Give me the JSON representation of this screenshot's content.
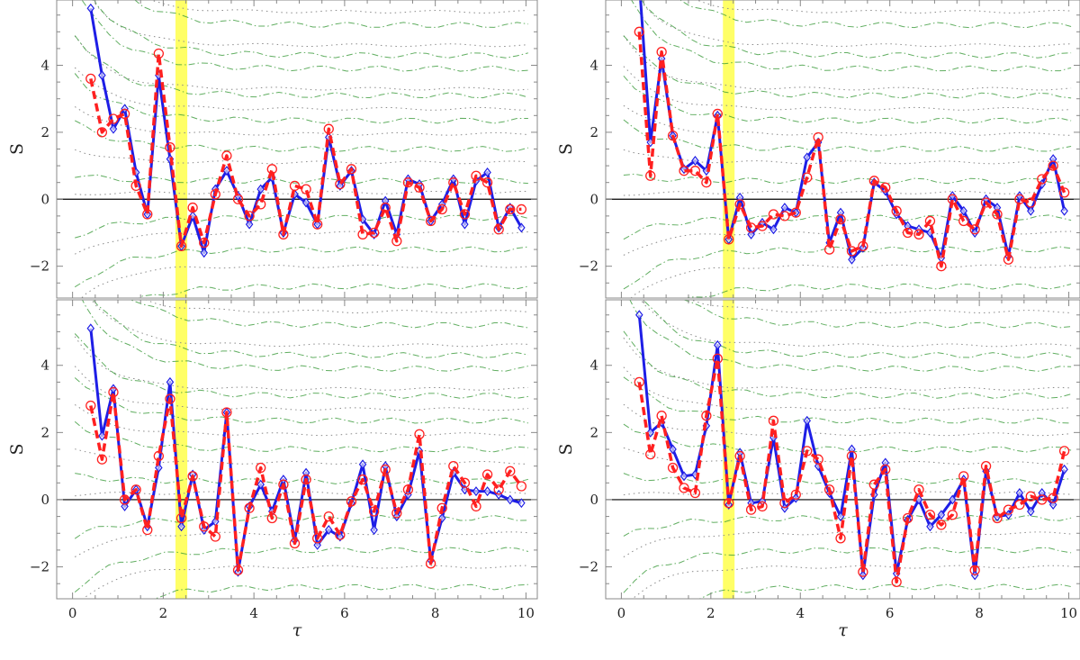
{
  "chart_data": [
    {
      "type": "line",
      "panel": "top-left",
      "xlabel": "",
      "ylabel": "S",
      "xlim": [
        -0.35,
        10.25
      ],
      "ylim": [
        -2.95,
        5.95
      ],
      "yticks": [
        -2,
        0,
        2,
        4
      ],
      "xticks": [
        0,
        2,
        4,
        6,
        8,
        10
      ],
      "highlight_band": [
        2.27,
        2.53
      ],
      "highlight_color": "#ffff66",
      "series": [
        {
          "color": "#1e1ee6",
          "style": "solid",
          "marker": "diamond",
          "x": [
            0.4,
            0.65,
            0.9,
            1.15,
            1.4,
            1.65,
            1.9,
            2.15,
            2.4,
            2.65,
            2.9,
            3.15,
            3.4,
            3.65,
            3.9,
            4.15,
            4.4,
            4.65,
            4.9,
            5.15,
            5.4,
            5.65,
            5.9,
            6.15,
            6.4,
            6.65,
            6.9,
            7.15,
            7.4,
            7.65,
            7.9,
            8.15,
            8.4,
            8.65,
            8.9,
            9.15,
            9.4,
            9.65,
            9.9
          ],
          "y": [
            5.7,
            3.7,
            2.1,
            2.7,
            0.8,
            -0.45,
            3.7,
            1.2,
            -1.4,
            -0.5,
            -1.6,
            0.3,
            0.85,
            0.1,
            -0.75,
            0.3,
            0.65,
            -1.0,
            0.15,
            -0.1,
            -0.75,
            1.85,
            0.4,
            0.85,
            -0.6,
            -1.05,
            -0.05,
            -1.05,
            0.6,
            0.45,
            -0.65,
            -0.15,
            0.6,
            -0.75,
            0.55,
            0.8,
            -0.85,
            -0.25,
            -0.85
          ]
        },
        {
          "color": "#ff2020",
          "style": "dashed",
          "marker": "circle",
          "x": [
            0.4,
            0.65,
            0.9,
            1.15,
            1.4,
            1.65,
            1.9,
            2.15,
            2.4,
            2.65,
            2.9,
            3.15,
            3.4,
            3.65,
            3.9,
            4.15,
            4.4,
            4.65,
            4.9,
            5.15,
            5.4,
            5.65,
            5.9,
            6.15,
            6.4,
            6.65,
            6.9,
            7.15,
            7.4,
            7.65,
            7.9,
            8.15,
            8.4,
            8.65,
            8.9,
            9.15,
            9.4,
            9.65,
            9.9
          ],
          "y": [
            3.6,
            2.0,
            2.4,
            2.55,
            0.4,
            -0.45,
            4.35,
            1.55,
            -1.4,
            -0.25,
            -1.3,
            0.15,
            1.3,
            0.0,
            -0.5,
            -0.15,
            0.9,
            -1.05,
            0.4,
            0.3,
            -0.75,
            2.1,
            0.45,
            0.9,
            -1.05,
            -1.0,
            -0.25,
            -1.25,
            0.5,
            0.35,
            -0.65,
            -0.3,
            0.5,
            -0.45,
            0.7,
            0.5,
            -0.9,
            -0.3,
            -0.3
          ]
        }
      ]
    },
    {
      "type": "line",
      "panel": "top-right",
      "xlabel": "",
      "ylabel": "S",
      "xlim": [
        -0.35,
        10.25
      ],
      "ylim": [
        -2.95,
        5.95
      ],
      "yticks": [
        -2,
        0,
        2,
        4
      ],
      "xticks": [
        0,
        2,
        4,
        6,
        8,
        10
      ],
      "highlight_band": [
        2.27,
        2.53
      ],
      "highlight_color": "#ffff66",
      "series": [
        {
          "color": "#1e1ee6",
          "style": "solid",
          "marker": "diamond",
          "x": [
            0.4,
            0.65,
            0.9,
            1.15,
            1.4,
            1.65,
            1.9,
            2.15,
            2.4,
            2.65,
            2.9,
            3.15,
            3.4,
            3.65,
            3.9,
            4.15,
            4.4,
            4.65,
            4.9,
            5.15,
            5.4,
            5.65,
            5.9,
            6.15,
            6.4,
            6.65,
            6.9,
            7.15,
            7.4,
            7.65,
            7.9,
            8.15,
            8.4,
            8.65,
            8.9,
            9.15,
            9.4,
            9.65,
            9.9
          ],
          "y": [
            6.5,
            1.7,
            4.2,
            1.9,
            0.9,
            1.15,
            0.85,
            2.5,
            -1.2,
            0.05,
            -1.05,
            -0.7,
            -0.9,
            -0.25,
            -0.4,
            1.25,
            1.7,
            -1.3,
            -0.4,
            -1.8,
            -1.45,
            0.5,
            0.25,
            -0.45,
            -0.8,
            -0.9,
            -1.0,
            -1.75,
            0.1,
            -0.35,
            -1.0,
            0.0,
            -0.25,
            -1.7,
            0.1,
            -0.35,
            0.45,
            1.2,
            -0.35
          ]
        },
        {
          "color": "#ff2020",
          "style": "dashed",
          "marker": "circle",
          "x": [
            0.4,
            0.65,
            0.9,
            1.15,
            1.4,
            1.65,
            1.9,
            2.15,
            2.4,
            2.65,
            2.9,
            3.15,
            3.4,
            3.65,
            3.9,
            4.15,
            4.4,
            4.65,
            4.9,
            5.15,
            5.4,
            5.65,
            5.9,
            6.15,
            6.4,
            6.65,
            6.9,
            7.15,
            7.4,
            7.65,
            7.9,
            8.15,
            8.4,
            8.65,
            8.9,
            9.15,
            9.4,
            9.65,
            9.9
          ],
          "y": [
            5.0,
            0.7,
            4.4,
            1.9,
            0.85,
            0.85,
            0.5,
            2.55,
            -1.2,
            -0.15,
            -0.85,
            -0.8,
            -0.45,
            -0.5,
            -0.4,
            0.65,
            1.85,
            -1.5,
            -0.6,
            -1.55,
            -1.4,
            0.55,
            0.35,
            -0.35,
            -1.0,
            -1.05,
            -0.65,
            -2.0,
            0.0,
            -0.65,
            -0.9,
            -0.1,
            -0.45,
            -1.8,
            0.0,
            -0.1,
            0.6,
            1.0,
            0.2
          ]
        }
      ]
    },
    {
      "type": "line",
      "panel": "bottom-left",
      "xlabel": "τ",
      "ylabel": "S",
      "xlim": [
        -0.35,
        10.25
      ],
      "ylim": [
        -2.95,
        5.95
      ],
      "yticks": [
        -2,
        0,
        2,
        4
      ],
      "xticks": [
        0,
        2,
        4,
        6,
        8,
        10
      ],
      "highlight_band": [
        2.27,
        2.53
      ],
      "highlight_color": "#ffff66",
      "series": [
        {
          "color": "#1e1ee6",
          "style": "solid",
          "marker": "diamond",
          "x": [
            0.4,
            0.65,
            0.9,
            1.15,
            1.4,
            1.65,
            1.9,
            2.15,
            2.4,
            2.65,
            2.9,
            3.15,
            3.4,
            3.65,
            3.9,
            4.15,
            4.4,
            4.65,
            4.9,
            5.15,
            5.4,
            5.65,
            5.9,
            6.15,
            6.4,
            6.65,
            6.9,
            7.15,
            7.4,
            7.65,
            7.9,
            8.15,
            8.4,
            8.65,
            8.9,
            9.15,
            9.4,
            9.65,
            9.9
          ],
          "y": [
            5.1,
            1.9,
            3.3,
            -0.2,
            0.3,
            -0.8,
            0.95,
            3.5,
            -0.8,
            0.75,
            -0.9,
            -0.65,
            2.6,
            -2.15,
            -0.2,
            0.45,
            -0.35,
            0.6,
            -1.2,
            0.8,
            -1.35,
            -0.9,
            -1.1,
            -0.1,
            1.05,
            -0.9,
            1.0,
            -0.5,
            0.15,
            1.45,
            -1.8,
            -0.55,
            0.8,
            0.3,
            0.25,
            0.25,
            0.15,
            0.0,
            -0.1
          ]
        },
        {
          "color": "#ff2020",
          "style": "dashed",
          "marker": "circle",
          "x": [
            0.4,
            0.65,
            0.9,
            1.15,
            1.4,
            1.65,
            1.9,
            2.15,
            2.4,
            2.65,
            2.9,
            3.15,
            3.4,
            3.65,
            3.9,
            4.15,
            4.4,
            4.65,
            4.9,
            5.15,
            5.4,
            5.65,
            5.9,
            6.15,
            6.4,
            6.65,
            6.9,
            7.15,
            7.4,
            7.65,
            7.9,
            8.15,
            8.4,
            8.65,
            8.9,
            9.15,
            9.4,
            9.65,
            9.9
          ],
          "y": [
            2.8,
            1.2,
            3.2,
            0.0,
            0.3,
            -0.9,
            1.3,
            3.0,
            -0.55,
            0.7,
            -0.8,
            -1.1,
            2.6,
            -2.1,
            -0.25,
            0.95,
            -0.55,
            0.45,
            -1.3,
            0.6,
            -1.15,
            -0.5,
            -1.05,
            -0.05,
            0.6,
            -0.35,
            0.9,
            -0.4,
            0.3,
            1.95,
            -1.9,
            -0.25,
            1.0,
            0.5,
            -0.2,
            0.75,
            0.3,
            0.85,
            0.4
          ]
        }
      ]
    },
    {
      "type": "line",
      "panel": "bottom-right",
      "xlabel": "τ",
      "ylabel": "S",
      "xlim": [
        -0.35,
        10.25
      ],
      "ylim": [
        -2.95,
        5.95
      ],
      "yticks": [
        -2,
        0,
        2,
        4
      ],
      "xticks": [
        0,
        2,
        4,
        6,
        8,
        10
      ],
      "highlight_band": [
        2.27,
        2.53
      ],
      "highlight_color": "#ffff66",
      "series": [
        {
          "color": "#1e1ee6",
          "style": "solid",
          "marker": "diamond",
          "x": [
            0.4,
            0.65,
            0.9,
            1.15,
            1.4,
            1.65,
            1.9,
            2.15,
            2.4,
            2.65,
            2.9,
            3.15,
            3.4,
            3.65,
            3.9,
            4.15,
            4.4,
            4.65,
            4.9,
            5.15,
            5.4,
            5.65,
            5.9,
            6.15,
            6.4,
            6.65,
            6.9,
            7.15,
            7.4,
            7.65,
            7.9,
            8.15,
            8.4,
            8.65,
            8.9,
            9.15,
            9.4,
            9.65,
            9.9
          ],
          "y": [
            5.5,
            2.0,
            2.3,
            1.5,
            0.7,
            0.75,
            2.2,
            4.6,
            -0.15,
            1.4,
            -0.1,
            -0.05,
            1.85,
            -0.25,
            0.05,
            2.35,
            1.0,
            0.2,
            -0.5,
            1.5,
            -2.25,
            0.15,
            1.1,
            -2.2,
            -0.6,
            0.0,
            -0.8,
            -0.45,
            0.0,
            0.6,
            -2.25,
            0.85,
            -0.5,
            -0.45,
            0.2,
            -0.35,
            0.2,
            -0.15,
            0.9
          ]
        },
        {
          "color": "#ff2020",
          "style": "dashed",
          "marker": "circle",
          "x": [
            0.4,
            0.65,
            0.9,
            1.15,
            1.4,
            1.65,
            1.9,
            2.15,
            2.4,
            2.65,
            2.9,
            3.15,
            3.4,
            3.65,
            3.9,
            4.15,
            4.4,
            4.65,
            4.9,
            5.15,
            5.4,
            5.65,
            5.9,
            6.15,
            6.4,
            6.65,
            6.9,
            7.15,
            7.4,
            7.65,
            7.9,
            8.15,
            8.4,
            8.65,
            8.9,
            9.15,
            9.4,
            9.65,
            9.9
          ],
          "y": [
            3.5,
            1.35,
            2.5,
            0.95,
            0.35,
            0.2,
            2.5,
            4.2,
            -0.1,
            1.3,
            -0.3,
            -0.2,
            2.35,
            -0.1,
            0.15,
            1.45,
            1.2,
            0.3,
            -1.15,
            1.3,
            -2.15,
            0.45,
            0.9,
            -2.45,
            -0.55,
            0.3,
            -0.45,
            -0.75,
            -0.45,
            0.7,
            -2.1,
            1.0,
            -0.55,
            -0.3,
            -0.15,
            0.1,
            0.0,
            0.05,
            1.45
          ]
        }
      ]
    }
  ],
  "guide_lines": {
    "dotted_color": "#8a8a8a",
    "dashdot_color": "#3a9a3a",
    "dotted_levels": [
      -3.0,
      -2.0,
      -1.0,
      0.2,
      1.1,
      1.95,
      2.7,
      3.3,
      4.6,
      5.6
    ],
    "dashdot_levels": [
      -2.6,
      -1.5,
      -0.55,
      0.55,
      1.5,
      2.35,
      3.1,
      3.9,
      4.3,
      5.2
    ]
  }
}
